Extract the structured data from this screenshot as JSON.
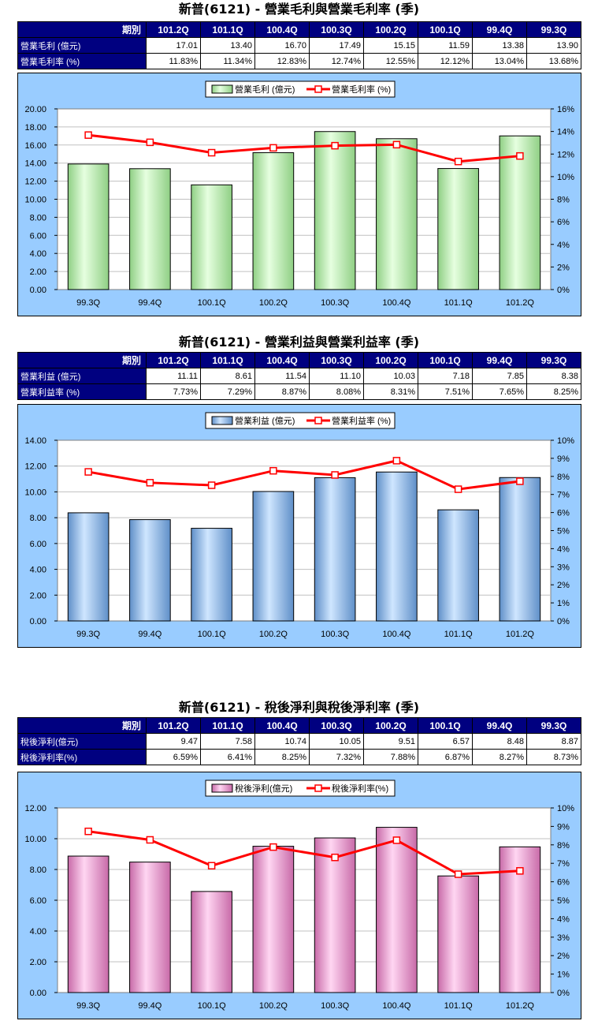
{
  "chart_data": [
    {
      "type": "bar",
      "title": "新普(6121) - 營業毛利與營業毛利率 (季)",
      "table": {
        "header_label": "期別",
        "periods": [
          "101.2Q",
          "101.1Q",
          "100.4Q",
          "100.3Q",
          "100.2Q",
          "100.1Q",
          "99.4Q",
          "99.3Q"
        ],
        "rows": [
          {
            "label": "營業毛利 (億元)",
            "values": [
              "17.01",
              "13.40",
              "16.70",
              "17.49",
              "15.15",
              "11.59",
              "13.38",
              "13.90"
            ]
          },
          {
            "label": "營業毛利率 (%)",
            "values": [
              "11.83%",
              "11.34%",
              "12.83%",
              "12.74%",
              "12.55%",
              "12.12%",
              "13.04%",
              "13.68%"
            ]
          }
        ]
      },
      "categories": [
        "99.3Q",
        "99.4Q",
        "100.1Q",
        "100.2Q",
        "100.3Q",
        "100.4Q",
        "101.1Q",
        "101.2Q"
      ],
      "series": [
        {
          "name": "營業毛利 (億元)",
          "kind": "bar",
          "axis": "left",
          "values": [
            13.9,
            13.38,
            11.59,
            15.15,
            17.49,
            16.7,
            13.4,
            17.01
          ]
        },
        {
          "name": "營業毛利率 (%)",
          "kind": "line",
          "axis": "right",
          "values": [
            13.68,
            13.04,
            12.12,
            12.55,
            12.74,
            12.83,
            11.34,
            11.83
          ]
        }
      ],
      "yleft": {
        "min": 0,
        "max": 20,
        "step": 2,
        "ticks": [
          "0.00",
          "2.00",
          "4.00",
          "6.00",
          "8.00",
          "10.00",
          "12.00",
          "14.00",
          "16.00",
          "18.00",
          "20.00"
        ]
      },
      "yright": {
        "min": 0,
        "max": 16,
        "step": 2,
        "ticks": [
          "0%",
          "2%",
          "4%",
          "6%",
          "8%",
          "10%",
          "12%",
          "14%",
          "16%"
        ]
      },
      "bar_color_light": "#e6ffe0",
      "bar_color_dark": "#8fcf84",
      "line_color": "#ff0000",
      "grid": true,
      "legend_position": "top"
    },
    {
      "type": "bar",
      "title": "新普(6121) - 營業利益與營業利益率 (季)",
      "table": {
        "header_label": "期別",
        "periods": [
          "101.2Q",
          "101.1Q",
          "100.4Q",
          "100.3Q",
          "100.2Q",
          "100.1Q",
          "99.4Q",
          "99.3Q"
        ],
        "rows": [
          {
            "label": "營業利益 (億元)",
            "values": [
              "11.11",
              "8.61",
              "11.54",
              "11.10",
              "10.03",
              "7.18",
              "7.85",
              "8.38"
            ]
          },
          {
            "label": "營業利益率 (%)",
            "values": [
              "7.73%",
              "7.29%",
              "8.87%",
              "8.08%",
              "8.31%",
              "7.51%",
              "7.65%",
              "8.25%"
            ]
          }
        ]
      },
      "categories": [
        "99.3Q",
        "99.4Q",
        "100.1Q",
        "100.2Q",
        "100.3Q",
        "100.4Q",
        "101.1Q",
        "101.2Q"
      ],
      "series": [
        {
          "name": "營業利益 (億元)",
          "kind": "bar",
          "axis": "left",
          "values": [
            8.38,
            7.85,
            7.18,
            10.03,
            11.1,
            11.54,
            8.61,
            11.11
          ]
        },
        {
          "name": "營業利益率 (%)",
          "kind": "line",
          "axis": "right",
          "values": [
            8.25,
            7.65,
            7.51,
            8.31,
            8.08,
            8.87,
            7.29,
            7.73
          ]
        }
      ],
      "yleft": {
        "min": 0,
        "max": 14,
        "step": 2,
        "ticks": [
          "0.00",
          "2.00",
          "4.00",
          "6.00",
          "8.00",
          "10.00",
          "12.00",
          "14.00"
        ]
      },
      "yright": {
        "min": 0,
        "max": 10,
        "step": 1,
        "ticks": [
          "0%",
          "1%",
          "2%",
          "3%",
          "4%",
          "5%",
          "6%",
          "7%",
          "8%",
          "9%",
          "10%"
        ]
      },
      "bar_color_light": "#cfe6ff",
      "bar_color_dark": "#5f8fc8",
      "line_color": "#ff0000",
      "grid": true,
      "legend_position": "top"
    },
    {
      "type": "bar",
      "title": "新普(6121) - 稅後淨利與稅後淨利率 (季)",
      "table": {
        "header_label": "期別",
        "periods": [
          "101.2Q",
          "101.1Q",
          "100.4Q",
          "100.3Q",
          "100.2Q",
          "100.1Q",
          "99.4Q",
          "99.3Q"
        ],
        "rows": [
          {
            "label": "稅後淨利(億元)",
            "values": [
              "9.47",
              "7.58",
              "10.74",
              "10.05",
              "9.51",
              "6.57",
              "8.48",
              "8.87"
            ]
          },
          {
            "label": "稅後淨利率(%)",
            "values": [
              "6.59%",
              "6.41%",
              "8.25%",
              "7.32%",
              "7.88%",
              "6.87%",
              "8.27%",
              "8.73%"
            ]
          }
        ]
      },
      "categories": [
        "99.3Q",
        "99.4Q",
        "100.1Q",
        "100.2Q",
        "100.3Q",
        "100.4Q",
        "101.1Q",
        "101.2Q"
      ],
      "series": [
        {
          "name": "稅後淨利(億元)",
          "kind": "bar",
          "axis": "left",
          "values": [
            8.87,
            8.48,
            6.57,
            9.51,
            10.05,
            10.74,
            7.58,
            9.47
          ]
        },
        {
          "name": "稅後淨利率(%)",
          "kind": "line",
          "axis": "right",
          "values": [
            8.73,
            8.27,
            6.87,
            7.88,
            7.32,
            8.25,
            6.41,
            6.59
          ]
        }
      ],
      "yleft": {
        "min": 0,
        "max": 12,
        "step": 2,
        "ticks": [
          "0.00",
          "2.00",
          "4.00",
          "6.00",
          "8.00",
          "10.00",
          "12.00"
        ]
      },
      "yright": {
        "min": 0,
        "max": 10,
        "step": 1,
        "ticks": [
          "0%",
          "1%",
          "2%",
          "3%",
          "4%",
          "5%",
          "6%",
          "7%",
          "8%",
          "9%",
          "10%"
        ]
      },
      "bar_color_light": "#ffd6f2",
      "bar_color_dark": "#c86aa8",
      "line_color": "#ff0000",
      "grid": true,
      "legend_position": "top"
    }
  ]
}
